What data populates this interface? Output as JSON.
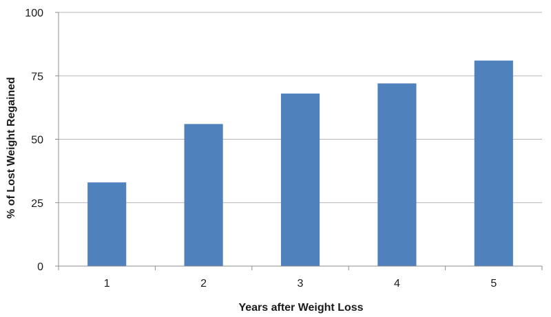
{
  "chart_data": {
    "type": "bar",
    "title": "",
    "xlabel": "Years after Weight Loss",
    "ylabel": "% of Lost Weight Regained",
    "categories": [
      "1",
      "2",
      "3",
      "4",
      "5"
    ],
    "values": [
      33,
      56,
      68,
      72,
      81
    ],
    "ylim": [
      0,
      100
    ],
    "yticks": [
      "0",
      "25",
      "50",
      "75",
      "100"
    ],
    "grid": true,
    "legend": "none",
    "colors": {
      "bar": "#4f81bd",
      "gridline": "#b3b3b3",
      "axis": "#8c8c8c"
    }
  }
}
